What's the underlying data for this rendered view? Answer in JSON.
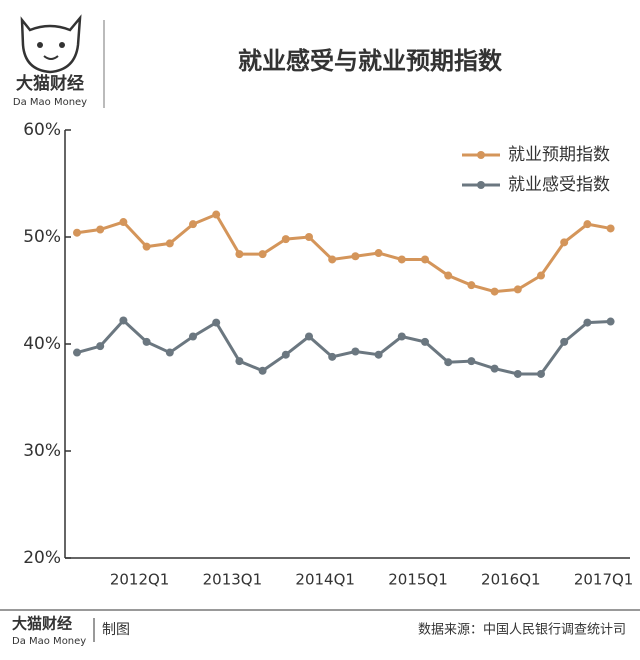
{
  "chart_data": {
    "type": "line",
    "title": "就业感受与就业预期指数",
    "categories": [
      null,
      null,
      null,
      "2012Q1",
      null,
      null,
      null,
      "2013Q1",
      null,
      null,
      null,
      "2014Q1",
      null,
      null,
      null,
      "2015Q1",
      null,
      null,
      null,
      "2016Q1",
      null,
      null,
      null,
      "2017Q1"
    ],
    "series": [
      {
        "name": "就业预期指数",
        "color": "#d4955a",
        "values": [
          50.4,
          50.7,
          51.4,
          49.1,
          49.4,
          51.2,
          52.1,
          48.4,
          48.4,
          49.8,
          50.0,
          47.9,
          48.2,
          48.5,
          47.9,
          47.9,
          46.4,
          45.5,
          44.9,
          45.1,
          46.4,
          49.5,
          51.2,
          50.8
        ]
      },
      {
        "name": "就业感受指数",
        "color": "#6b7780",
        "values": [
          39.2,
          39.8,
          42.2,
          40.2,
          39.2,
          40.7,
          42.0,
          38.4,
          37.5,
          39.0,
          40.7,
          38.8,
          39.3,
          39.0,
          40.7,
          40.2,
          38.3,
          38.4,
          37.7,
          37.2,
          37.2,
          40.2,
          42.0,
          42.1
        ]
      }
    ],
    "ylim": [
      20,
      60
    ],
    "yticks": [
      {
        "value": 20,
        "label": "20%"
      },
      {
        "value": 30,
        "label": "30%"
      },
      {
        "value": 40,
        "label": "40%"
      },
      {
        "value": 50,
        "label": "50%"
      },
      {
        "value": 60,
        "label": "60%"
      }
    ],
    "legend": "top-right"
  },
  "branding": {
    "name": "大猫财经",
    "english": "Da Mao Money",
    "credit": "制图"
  },
  "source": "数据来源：中国人民银行调查统计司"
}
